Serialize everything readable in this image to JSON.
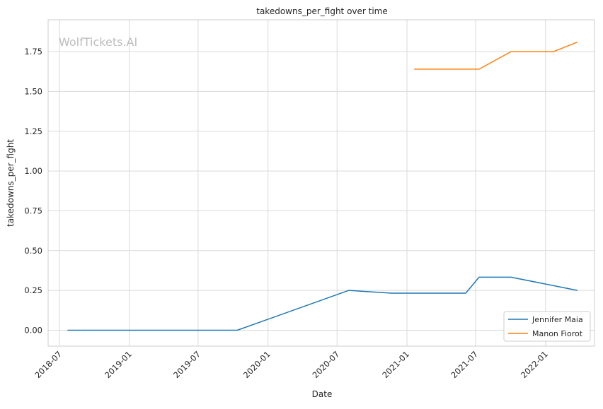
{
  "watermark": "WolfTickets.AI",
  "chart_data": {
    "type": "line",
    "title": "takedowns_per_fight over time",
    "xlabel": "Date",
    "ylabel": "takedowns_per_fight",
    "x_ticks": [
      "2018-07",
      "2019-01",
      "2019-07",
      "2020-01",
      "2020-07",
      "2021-01",
      "2021-07",
      "2022-01"
    ],
    "y_ticks": [
      "0.00",
      "0.25",
      "0.50",
      "0.75",
      "1.00",
      "1.25",
      "1.50",
      "1.75"
    ],
    "xlim": [
      "2018-06-01",
      "2022-05-10"
    ],
    "ylim": [
      -0.1,
      1.95
    ],
    "grid": true,
    "legend_position": "lower-right",
    "series": [
      {
        "name": "Jennifer Maia",
        "color": "#1f77b4",
        "x": [
          "2018-07-22",
          "2019-10-12",
          "2020-08-01",
          "2020-11-21",
          "2021-06-05",
          "2021-07-10",
          "2021-10-02",
          "2022-03-26"
        ],
        "y": [
          0.0,
          0.0,
          0.25,
          0.233,
          0.233,
          0.333,
          0.333,
          0.25
        ]
      },
      {
        "name": "Manon Fiorot",
        "color": "#ff7f0e",
        "x": [
          "2021-01-20",
          "2021-07-10",
          "2021-10-02",
          "2022-01-22",
          "2022-03-26"
        ],
        "y": [
          1.64,
          1.64,
          1.75,
          1.75,
          1.81
        ]
      }
    ]
  }
}
